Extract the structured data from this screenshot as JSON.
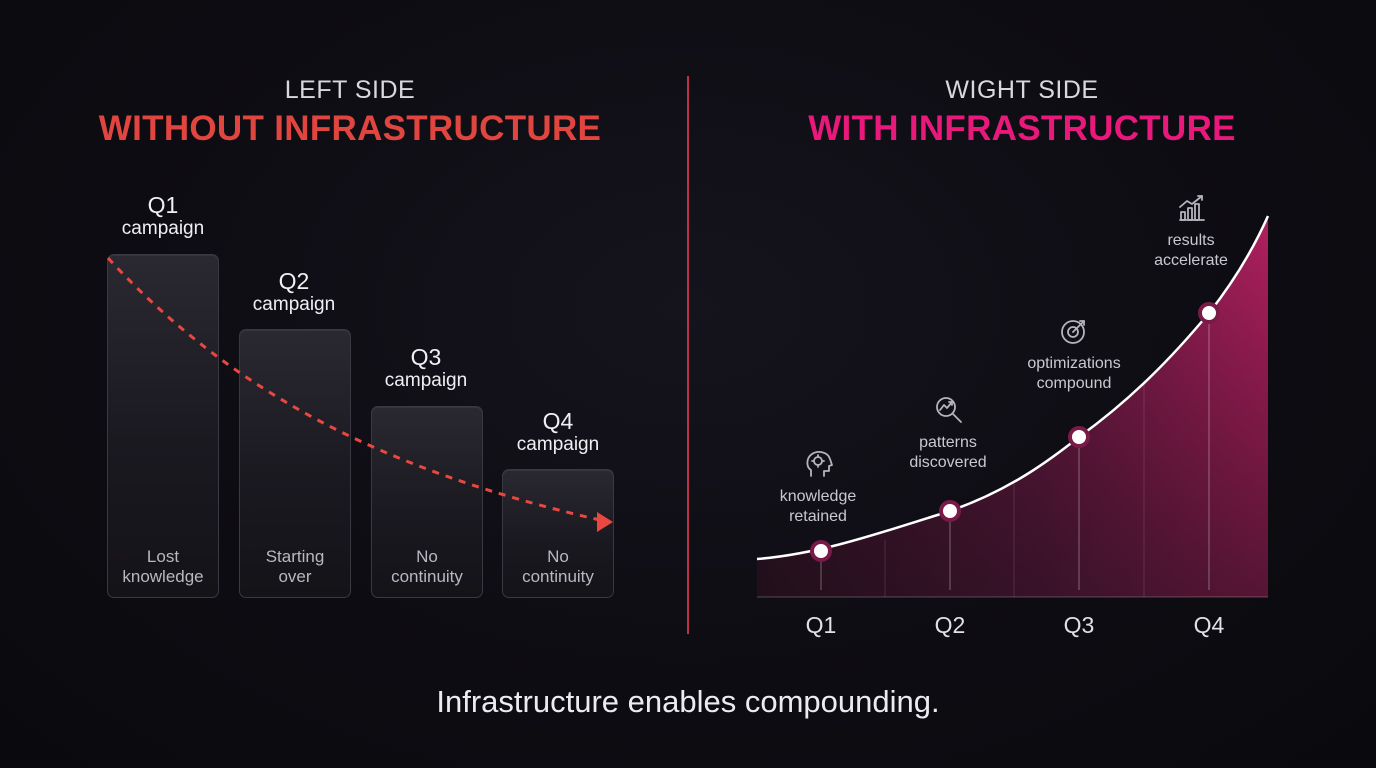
{
  "left": {
    "subtitle": "LEFT SIDE",
    "title": "WITHOUT INFRASTRUCTURE",
    "title_color": "#e0463f",
    "bars": [
      {
        "quarter": "Q1",
        "label": "campaign",
        "caption_line1": "Lost",
        "caption_line2": "knowledge"
      },
      {
        "quarter": "Q2",
        "label": "campaign",
        "caption_line1": "Starting",
        "caption_line2": "over"
      },
      {
        "quarter": "Q3",
        "label": "campaign",
        "caption_line1": "No",
        "caption_line2": "continuity"
      },
      {
        "quarter": "Q4",
        "label": "campaign",
        "caption_line1": "No",
        "caption_line2": "continuity"
      }
    ],
    "trend_color": "#e8483f"
  },
  "right": {
    "subtitle": "WIGHT SIDE",
    "title": "WITH INFRASTRUCTURE",
    "title_color": "#e8197a",
    "ticks": [
      "Q1",
      "Q2",
      "Q3",
      "Q4"
    ],
    "stages": [
      {
        "line1": "knowledge",
        "line2": "retained",
        "icon": "brain-head-icon"
      },
      {
        "line1": "patterns",
        "line2": "discovered",
        "icon": "magnify-trend-icon"
      },
      {
        "line1": "optimizations",
        "line2": "compound",
        "icon": "target-arrow-icon"
      },
      {
        "line1": "results",
        "line2": "accelerate",
        "icon": "bar-chart-up-icon"
      }
    ],
    "curve_color": "#ffffff",
    "fill_color": "#b0205f"
  },
  "footer": "Infrastructure enables compounding."
}
